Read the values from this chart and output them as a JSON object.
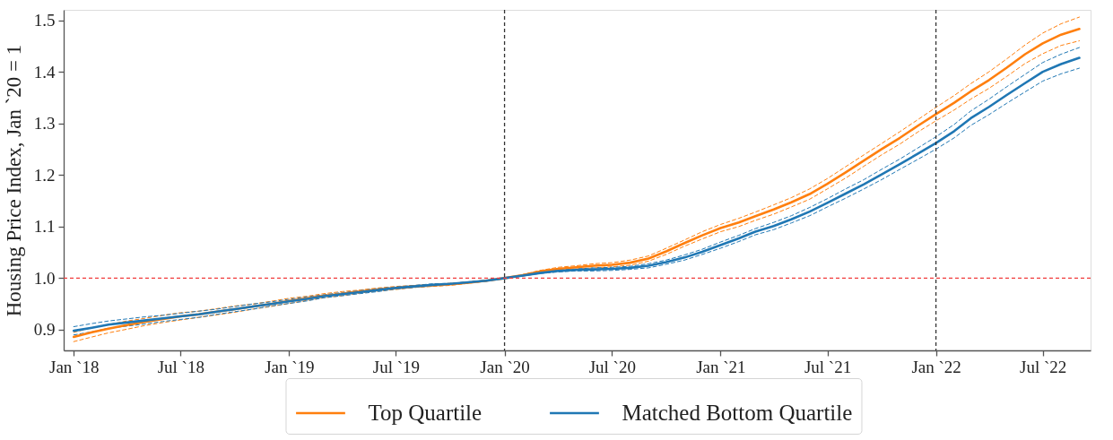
{
  "chart_data": {
    "type": "line",
    "ylabel": "Housing Price Index, Jan `20 = 1",
    "x": [
      "2018-01",
      "2018-02",
      "2018-03",
      "2018-04",
      "2018-05",
      "2018-06",
      "2018-07",
      "2018-08",
      "2018-09",
      "2018-10",
      "2018-11",
      "2018-12",
      "2019-01",
      "2019-02",
      "2019-03",
      "2019-04",
      "2019-05",
      "2019-06",
      "2019-07",
      "2019-08",
      "2019-09",
      "2019-10",
      "2019-11",
      "2019-12",
      "2020-01",
      "2020-02",
      "2020-03",
      "2020-04",
      "2020-05",
      "2020-06",
      "2020-07",
      "2020-08",
      "2020-09",
      "2020-10",
      "2020-11",
      "2020-12",
      "2021-01",
      "2021-02",
      "2021-03",
      "2021-04",
      "2021-05",
      "2021-06",
      "2021-07",
      "2021-08",
      "2021-09",
      "2021-10",
      "2021-11",
      "2021-12",
      "2022-01",
      "2022-02",
      "2022-03",
      "2022-04",
      "2022-05",
      "2022-06",
      "2022-07",
      "2022-08",
      "2022-09"
    ],
    "series": [
      {
        "color": "#ff7f0e",
        "line_style": "dashed",
        "values": [
          0.895,
          0.904,
          0.91,
          0.917,
          0.922,
          0.928,
          0.933,
          0.936,
          0.941,
          0.946,
          0.95,
          0.955,
          0.961,
          0.965,
          0.97,
          0.974,
          0.977,
          0.981,
          0.984,
          0.986,
          0.988,
          0.99,
          0.992,
          0.996,
          1.0,
          1.007,
          1.015,
          1.021,
          1.024,
          1.028,
          1.03,
          1.035,
          1.043,
          1.058,
          1.074,
          1.09,
          1.104,
          1.116,
          1.128,
          1.142,
          1.156,
          1.173,
          1.193,
          1.216,
          1.239,
          1.261,
          1.284,
          1.307,
          1.331,
          1.354,
          1.377,
          1.4,
          1.425,
          1.452,
          1.475,
          1.493,
          1.506
        ]
      },
      {
        "color": "#ff7f0e",
        "line_style": "dashed",
        "values": [
          0.877,
          0.886,
          0.894,
          0.901,
          0.908,
          0.914,
          0.919,
          0.924,
          0.929,
          0.934,
          0.94,
          0.945,
          0.951,
          0.957,
          0.962,
          0.966,
          0.971,
          0.975,
          0.978,
          0.982,
          0.984,
          0.986,
          0.99,
          0.994,
          1.0,
          1.005,
          1.011,
          1.015,
          1.018,
          1.02,
          1.022,
          1.025,
          1.033,
          1.046,
          1.062,
          1.076,
          1.09,
          1.1,
          1.112,
          1.124,
          1.138,
          1.153,
          1.173,
          1.194,
          1.217,
          1.239,
          1.26,
          1.283,
          1.305,
          1.326,
          1.347,
          1.368,
          1.391,
          1.416,
          1.435,
          1.451,
          1.46
        ]
      },
      {
        "color": "#1f77b4",
        "line_style": "dashed",
        "values": [
          0.906,
          0.912,
          0.917,
          0.921,
          0.925,
          0.928,
          0.932,
          0.936,
          0.94,
          0.945,
          0.95,
          0.954,
          0.959,
          0.964,
          0.968,
          0.972,
          0.976,
          0.98,
          0.983,
          0.986,
          0.989,
          0.99,
          0.993,
          0.996,
          1.0,
          1.006,
          1.011,
          1.016,
          1.018,
          1.02,
          1.021,
          1.023,
          1.028,
          1.035,
          1.045,
          1.056,
          1.07,
          1.083,
          1.096,
          1.108,
          1.121,
          1.137,
          1.154,
          1.173,
          1.191,
          1.211,
          1.231,
          1.252,
          1.274,
          1.298,
          1.324,
          1.347,
          1.371,
          1.395,
          1.418,
          1.434,
          1.447
        ]
      },
      {
        "color": "#1f77b4",
        "line_style": "dashed",
        "values": [
          0.89,
          0.896,
          0.903,
          0.907,
          0.911,
          0.916,
          0.92,
          0.924,
          0.93,
          0.935,
          0.94,
          0.946,
          0.951,
          0.956,
          0.962,
          0.966,
          0.97,
          0.974,
          0.979,
          0.982,
          0.985,
          0.988,
          0.991,
          0.994,
          1.0,
          1.004,
          1.009,
          1.012,
          1.014,
          1.014,
          1.015,
          1.017,
          1.02,
          1.027,
          1.035,
          1.046,
          1.058,
          1.071,
          1.084,
          1.094,
          1.107,
          1.121,
          1.138,
          1.155,
          1.173,
          1.191,
          1.211,
          1.23,
          1.25,
          1.272,
          1.296,
          1.317,
          1.339,
          1.361,
          1.382,
          1.396,
          1.407
        ]
      },
      {
        "name": "Top Quartile",
        "color": "#ff7f0e",
        "line_style": "solid",
        "values": [
          0.886,
          0.895,
          0.902,
          0.909,
          0.915,
          0.921,
          0.926,
          0.93,
          0.935,
          0.94,
          0.945,
          0.95,
          0.956,
          0.961,
          0.966,
          0.97,
          0.974,
          0.978,
          0.981,
          0.984,
          0.986,
          0.988,
          0.991,
          0.995,
          1.0,
          1.006,
          1.013,
          1.018,
          1.021,
          1.024,
          1.026,
          1.03,
          1.038,
          1.052,
          1.068,
          1.083,
          1.097,
          1.108,
          1.12,
          1.133,
          1.147,
          1.163,
          1.183,
          1.205,
          1.228,
          1.25,
          1.272,
          1.295,
          1.318,
          1.34,
          1.362,
          1.384,
          1.408,
          1.434,
          1.455,
          1.472,
          1.483
        ]
      },
      {
        "name": "Matched Bottom Quartile",
        "color": "#1f77b4",
        "line_style": "solid",
        "values": [
          0.898,
          0.904,
          0.91,
          0.914,
          0.918,
          0.922,
          0.926,
          0.93,
          0.935,
          0.94,
          0.945,
          0.95,
          0.955,
          0.96,
          0.965,
          0.969,
          0.973,
          0.977,
          0.981,
          0.984,
          0.987,
          0.989,
          0.992,
          0.995,
          1.0,
          1.005,
          1.01,
          1.014,
          1.016,
          1.017,
          1.018,
          1.02,
          1.024,
          1.031,
          1.04,
          1.051,
          1.064,
          1.077,
          1.09,
          1.101,
          1.114,
          1.129,
          1.146,
          1.164,
          1.182,
          1.201,
          1.221,
          1.241,
          1.262,
          1.285,
          1.31,
          1.332,
          1.355,
          1.378,
          1.4,
          1.415,
          1.427
        ]
      }
    ],
    "xlim": [
      "2017-12-15",
      "2022-09-20"
    ],
    "xticks": [
      {
        "value": "2018-01",
        "label": "Jan `18"
      },
      {
        "value": "2018-07",
        "label": "Jul `18"
      },
      {
        "value": "2019-01",
        "label": "Jan `19"
      },
      {
        "value": "2019-07",
        "label": "Jul `19"
      },
      {
        "value": "2020-01",
        "label": "Jan `20"
      },
      {
        "value": "2020-07",
        "label": "Jul `20"
      },
      {
        "value": "2021-01",
        "label": "Jan `21"
      },
      {
        "value": "2021-07",
        "label": "Jul `21"
      },
      {
        "value": "2022-01",
        "label": "Jan `22"
      },
      {
        "value": "2022-07",
        "label": "Jul `22"
      }
    ],
    "ylim": [
      0.86,
      1.52
    ],
    "yticks": [
      0.9,
      {
        "value": 1.0,
        "label": "1.0"
      },
      1.1,
      1.2,
      1.3,
      1.4,
      1.5
    ],
    "ref_lines": [
      {
        "axis": "y",
        "value": 1.0,
        "color": "#f03c3c",
        "line_style": "dashed"
      },
      {
        "axis": "x",
        "value": "2020-01",
        "color": "#333333",
        "line_style": "dashed"
      },
      {
        "axis": "x",
        "value": "2022-01",
        "color": "#333333",
        "line_style": "dashed"
      }
    ],
    "legend": "bottom"
  }
}
